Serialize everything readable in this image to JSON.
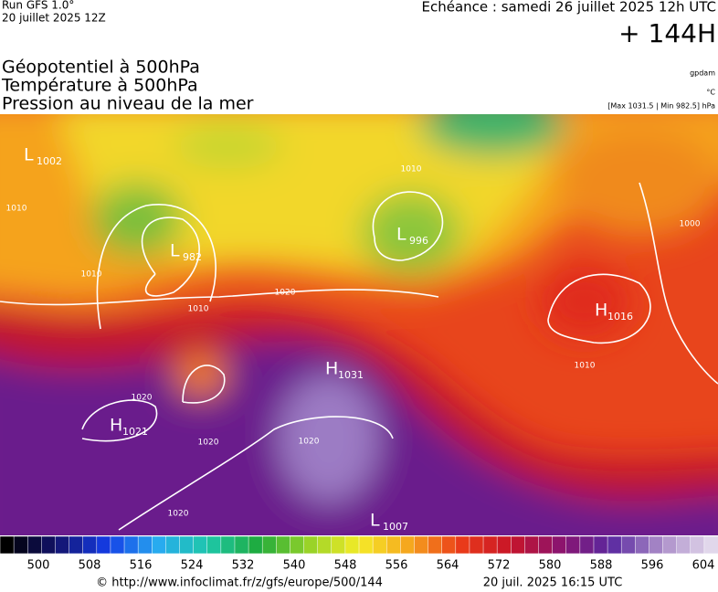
{
  "header": {
    "run": "Run GFS 1.0°",
    "date": "20 juillet 2025 12Z",
    "echeance": "Echéance : samedi 26 juillet 2025 12h UTC",
    "lead": "+ 144H",
    "titles": [
      "Géopotentiel à 500hPa",
      "Température à 500hPa",
      "Pression au niveau de la mer"
    ],
    "units": [
      "gpdam",
      "°C",
      "[Max 1031.5 | Min 982.5] hPa"
    ]
  },
  "pressure_centers": [
    {
      "type": "L",
      "value": "1002"
    },
    {
      "type": "L",
      "value": "982"
    },
    {
      "type": "L",
      "value": "996"
    },
    {
      "type": "H",
      "value": "1016"
    },
    {
      "type": "H",
      "value": "1031"
    },
    {
      "type": "H",
      "value": "1021"
    },
    {
      "type": "L",
      "value": "1007"
    }
  ],
  "isobar_labels": [
    "1020",
    "1010",
    "1020",
    "1020",
    "1020",
    "1010",
    "1000",
    "1010",
    "1010",
    "1010",
    "1020"
  ],
  "colorbar": {
    "ticks": [
      "500",
      "508",
      "516",
      "524",
      "532",
      "540",
      "548",
      "556",
      "564",
      "572",
      "580",
      "588",
      "596",
      "604"
    ]
  },
  "footer": {
    "url": "© http://www.infoclimat.fr/z/gfs/europe/500/144",
    "timestamp": "20 juil. 2025 16:15 UTC"
  }
}
